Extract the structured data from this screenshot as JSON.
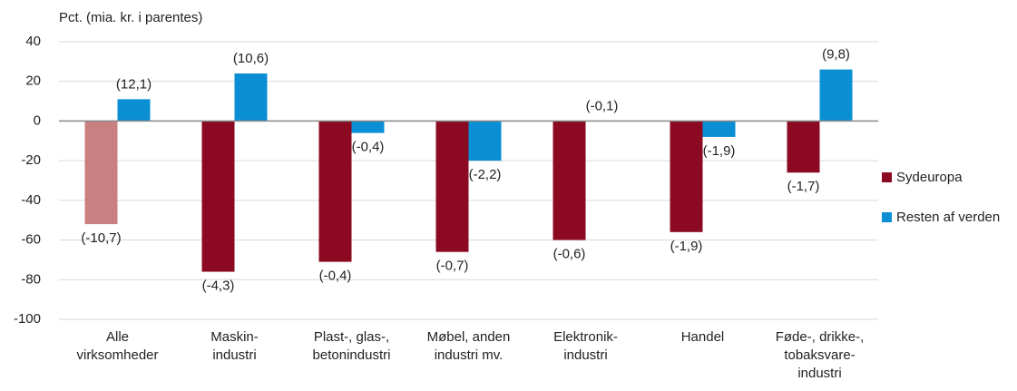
{
  "chart_data": {
    "type": "bar",
    "ylabel": "Pct. (mia. kr. i parentes)",
    "categories": [
      [
        "Alle",
        "virksomheder"
      ],
      [
        "Maskin-",
        "industri"
      ],
      [
        "Plast-, glas-,",
        "betonindustri"
      ],
      [
        "Møbel, anden",
        "industri mv."
      ],
      [
        "Elektronik-",
        "industri"
      ],
      [
        "Handel"
      ],
      [
        "Føde-, drikke-,",
        "tobaksvare-",
        "industri"
      ]
    ],
    "series": [
      {
        "name": "Sydeuropa",
        "color": "#8b0a22",
        "colors": [
          "#c98080",
          "#8b0a22",
          "#8b0a22",
          "#8b0a22",
          "#8b0a22",
          "#8b0a22",
          "#8b0a22"
        ],
        "values": [
          -52,
          -76,
          -71,
          -66,
          -60,
          -56,
          -26
        ],
        "labels": [
          "(-10,7)",
          "(-4,3)",
          "(-0,4)",
          "(-0,7)",
          "(-0,6)",
          "(-1,9)",
          "(-1,7)"
        ]
      },
      {
        "name": "Resten af verden",
        "color": "#0a8fd4",
        "values": [
          11,
          24,
          -6,
          -20,
          0,
          -8,
          26
        ],
        "labels": [
          "(12,1)",
          "(10,6)",
          "(-0,4)",
          "(-2,2)",
          "(-0,1)",
          "(-1,9)",
          "(9,8)"
        ]
      }
    ],
    "ylim": [
      -100,
      40
    ],
    "yticks": [
      -100,
      -80,
      -60,
      -40,
      -20,
      0,
      20,
      40
    ],
    "grid": true,
    "legend": "right"
  }
}
